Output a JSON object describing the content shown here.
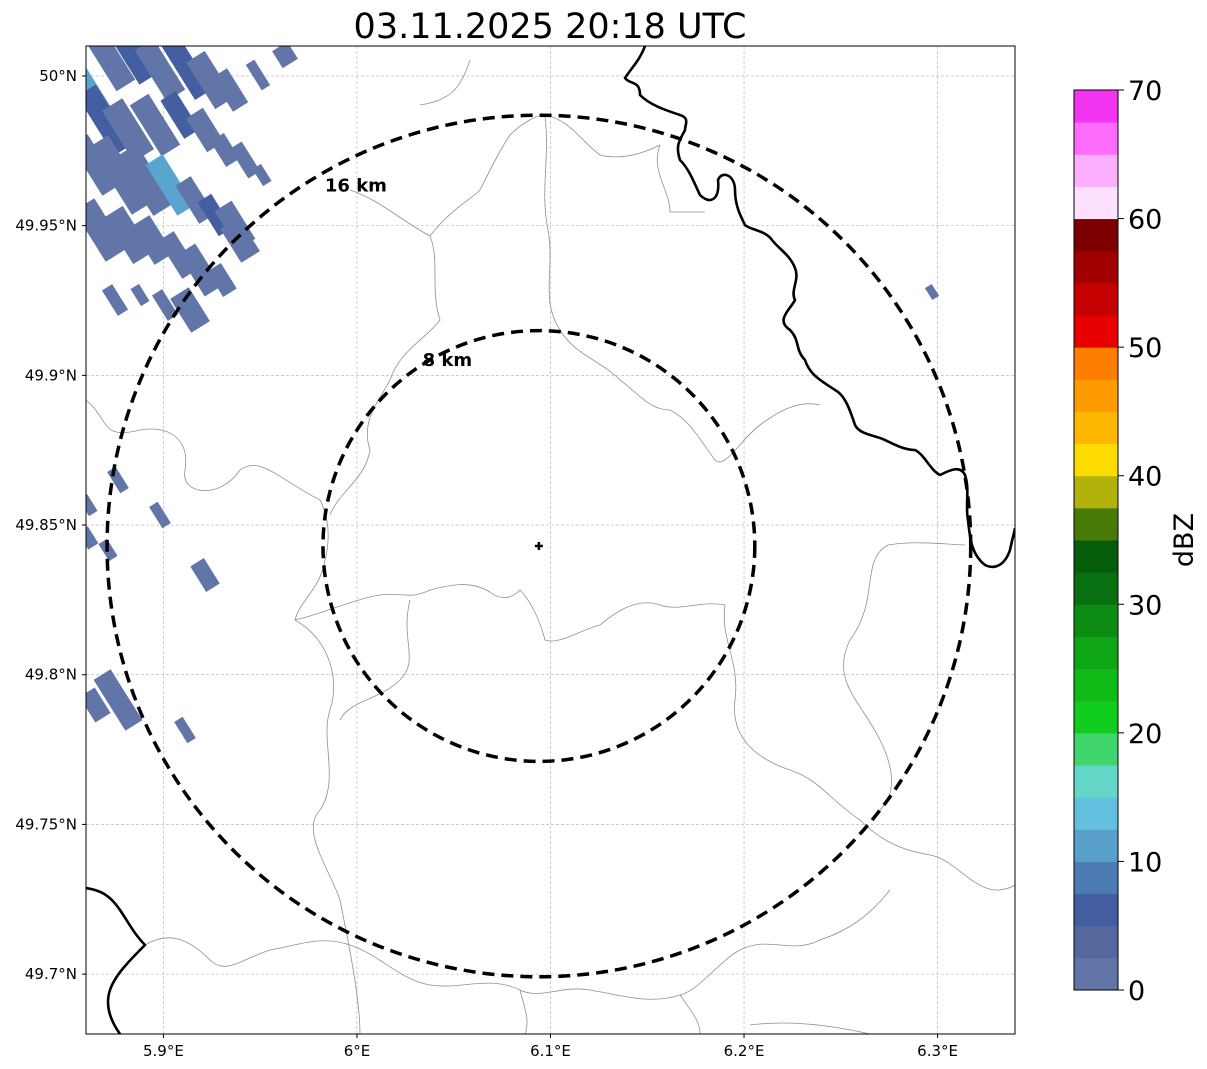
{
  "title": "03.11.2025 20:18 UTC",
  "map": {
    "lon_range": [
      5.86,
      6.34
    ],
    "lat_range": [
      49.68,
      50.01
    ],
    "lon_ticks": [
      {
        "value": 5.9,
        "label": "5.9°E"
      },
      {
        "value": 6.0,
        "label": "6°E"
      },
      {
        "value": 6.1,
        "label": "6.1°E"
      },
      {
        "value": 6.2,
        "label": "6.2°E"
      },
      {
        "value": 6.3,
        "label": "6.3°E"
      }
    ],
    "lat_ticks": [
      {
        "value": 50.0,
        "label": "50°N"
      },
      {
        "value": 49.95,
        "label": "49.95°N"
      },
      {
        "value": 49.9,
        "label": "49.9°N"
      },
      {
        "value": 49.85,
        "label": "49.85°N"
      },
      {
        "value": 49.8,
        "label": "49.8°N"
      },
      {
        "value": 49.75,
        "label": "49.75°N"
      },
      {
        "value": 49.7,
        "label": "49.7°N"
      }
    ],
    "gridlines": true,
    "radar_site": {
      "lon": 6.094,
      "lat": 49.843
    },
    "range_rings": [
      {
        "radius_km": 8,
        "label": "8 km"
      },
      {
        "radius_km": 16,
        "label": "16 km"
      }
    ],
    "colors": {
      "border": "#000000",
      "admin_lines": "#909090",
      "gridline": "#b0b0b0"
    }
  },
  "colorbar": {
    "label": "dBZ",
    "range": [
      0,
      70
    ],
    "tick_values": [
      0,
      10,
      20,
      30,
      40,
      50,
      60,
      70
    ],
    "tick_labels": [
      "0",
      "10",
      "20",
      "30",
      "40",
      "50",
      "60",
      "70"
    ],
    "bins": [
      "#6275a8",
      "#54689e",
      "#445ea2",
      "#4b7bb2",
      "#58a0c9",
      "#63c0de",
      "#63d6c7",
      "#3fd56c",
      "#10cc1c",
      "#10bb18",
      "#0ea614",
      "#0c8c12",
      "#097012",
      "#055c0a",
      "#477a07",
      "#b0b10b",
      "#fedb00",
      "#feb700",
      "#fe9b00",
      "#fe7f00",
      "#e70000",
      "#c40000",
      "#a00000",
      "#7c0000",
      "#fde0fd",
      "#fcafff",
      "#fd6cfc",
      "#f135f0"
    ]
  },
  "echo_color_light": "#5aa5cf",
  "echo_color": "#6275a8",
  "echo_color_dark": "#445ea2"
}
